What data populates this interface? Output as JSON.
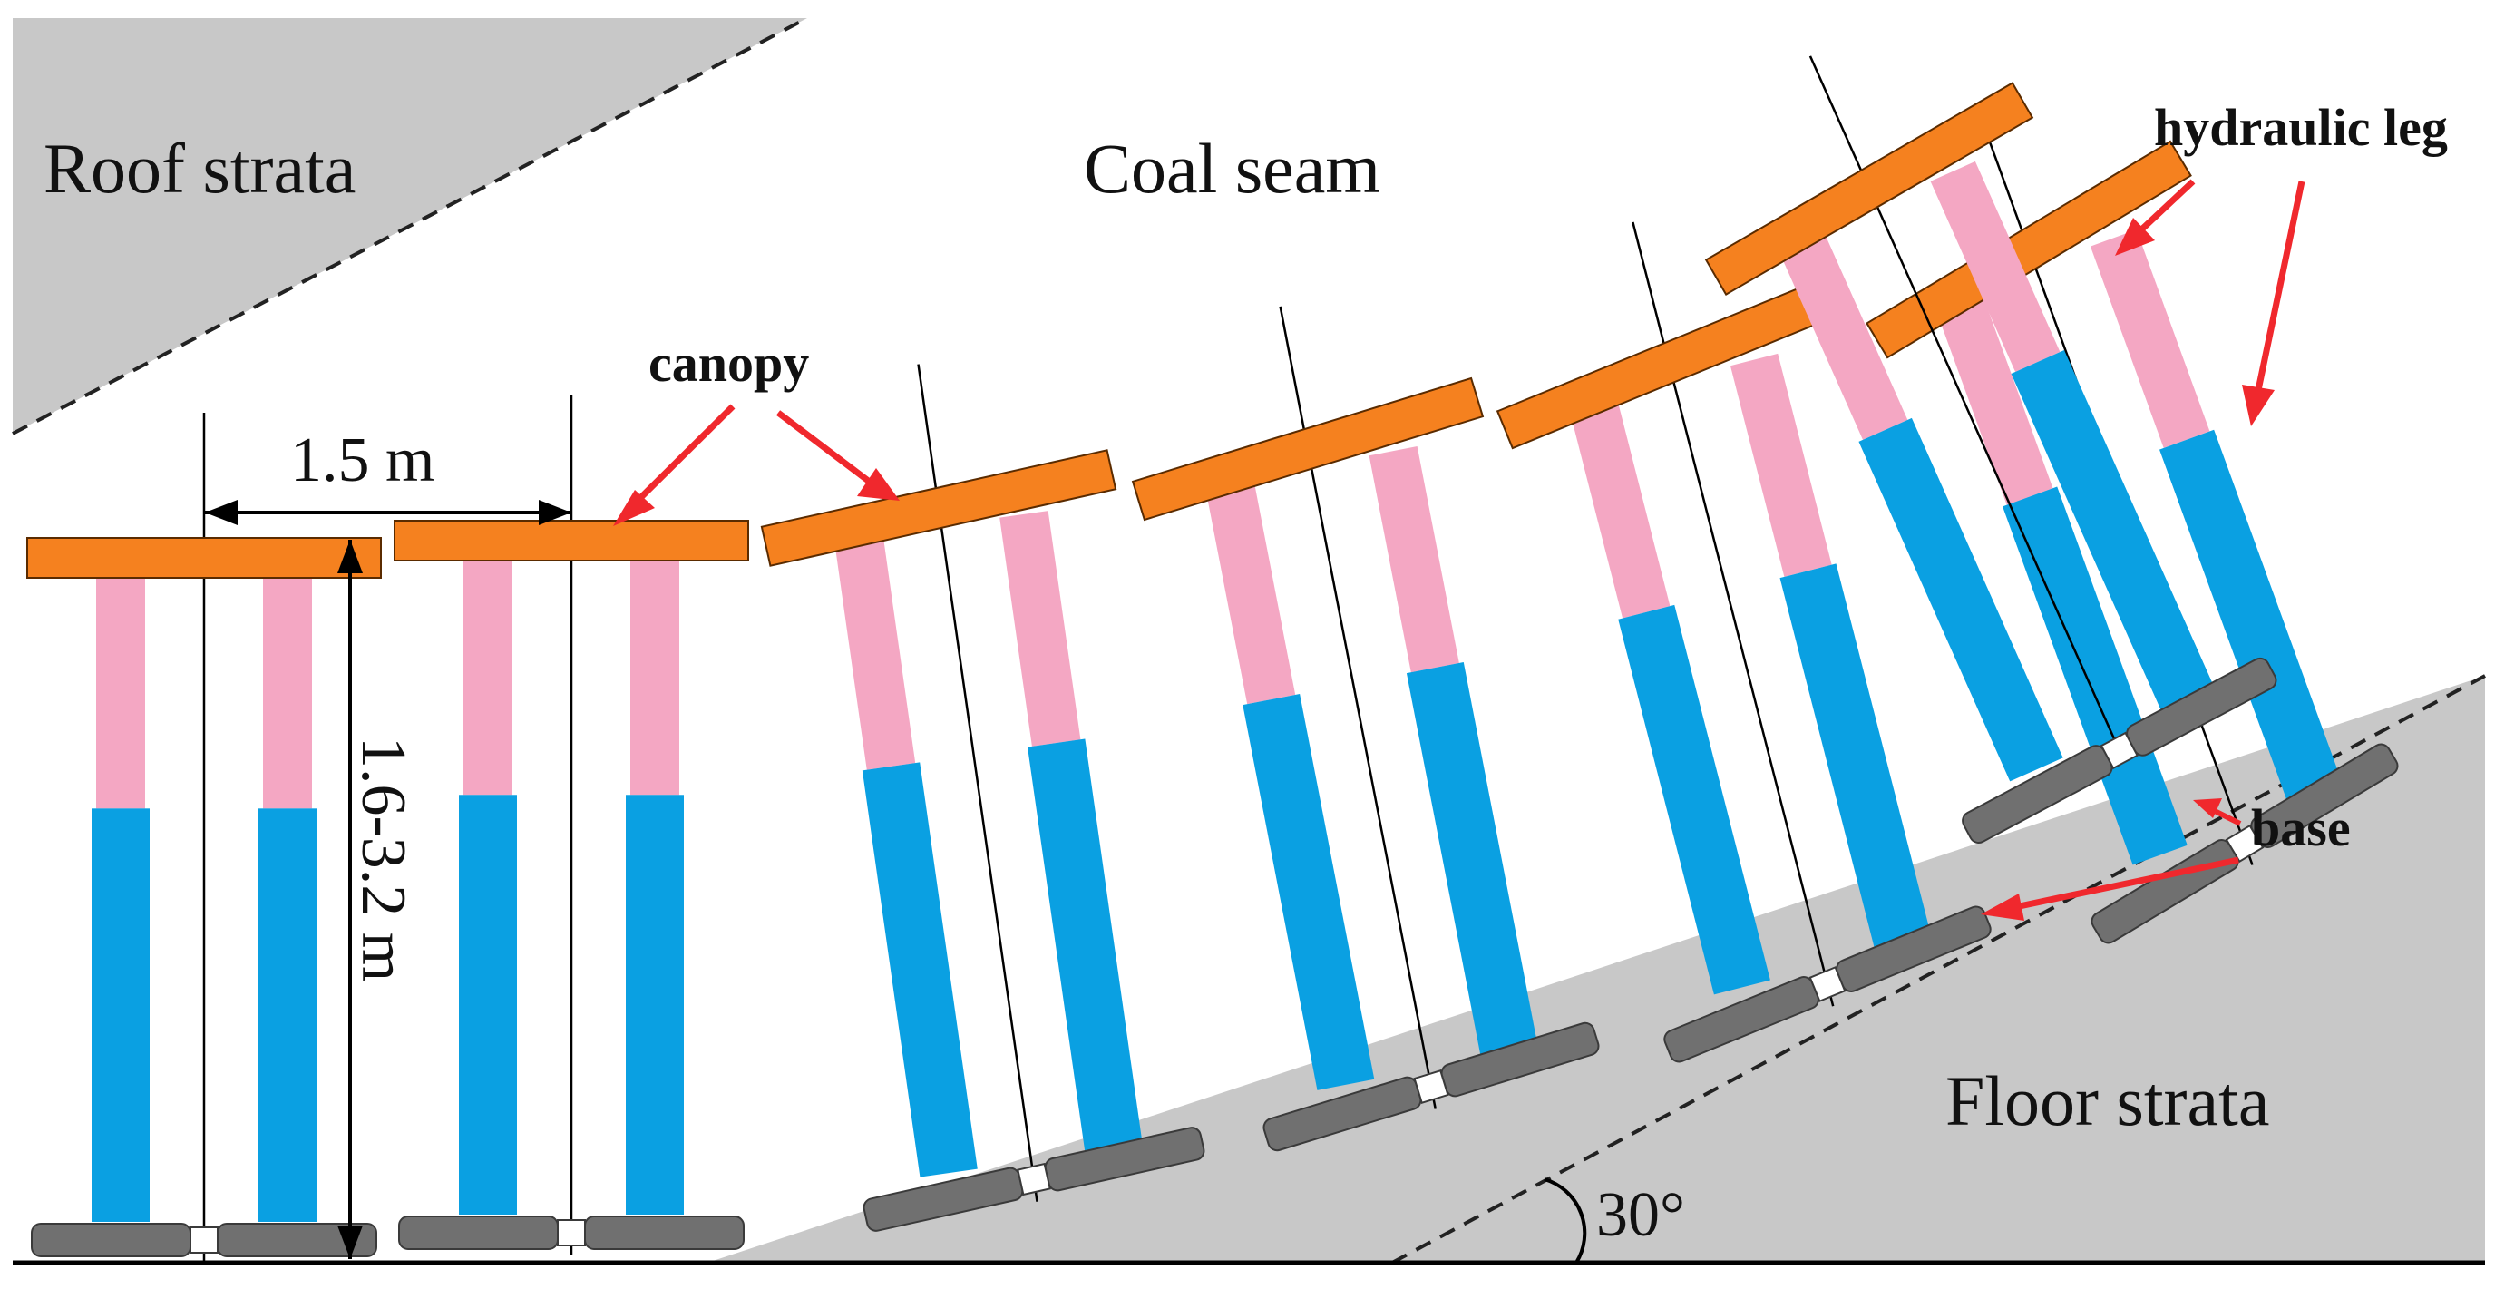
{
  "figure": {
    "labels": {
      "roof": "Roof strata",
      "coal": "Coal seam",
      "floor": "Floor strata",
      "canopy": "canopy",
      "hydraulic_leg": "hydraulic leg",
      "base": "base",
      "spacing": "1.5 m",
      "height": "1.6-3.2 m",
      "angle": "30°"
    },
    "colors": {
      "canopy": "#F5811F",
      "leg_upper": "#F4A7C3",
      "leg_lower": "#0AA0E2",
      "base": "#707070",
      "strata": "#C8C8C8",
      "arrow": "#F0282D"
    },
    "support_count": 7,
    "floor_dip_deg": 30
  }
}
